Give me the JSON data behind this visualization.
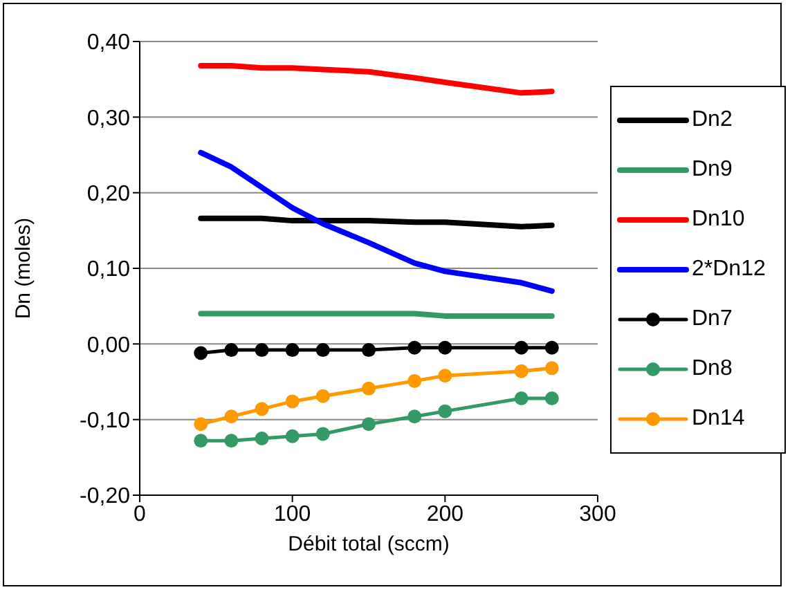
{
  "chart_data": {
    "type": "line",
    "xlabel": "Débit total (sccm)",
    "ylabel": "Dn (moles)",
    "x": [
      40,
      60,
      80,
      100,
      120,
      150,
      180,
      200,
      250,
      270
    ],
    "xlim": [
      0,
      300
    ],
    "xticks": [
      0,
      100,
      200,
      300
    ],
    "ylim": [
      -0.2,
      0.4
    ],
    "yticks": [
      {
        "value": -0.2,
        "label": "-0,20"
      },
      {
        "value": -0.1,
        "label": "-0,10"
      },
      {
        "value": 0,
        "label": "0,00"
      },
      {
        "value": 0.1,
        "label": "0,10"
      },
      {
        "value": 0.2,
        "label": "0,20"
      },
      {
        "value": 0.3,
        "label": "0,30"
      },
      {
        "value": 0.4,
        "label": "0,40"
      }
    ],
    "grid": "y",
    "legend": "right",
    "series": [
      {
        "name": "Dn2",
        "color": "#000000",
        "marker": "none",
        "values": [
          0.166,
          0.166,
          0.166,
          0.163,
          0.163,
          0.163,
          0.161,
          0.161,
          0.155,
          0.157
        ]
      },
      {
        "name": "Dn9",
        "color": "#339966",
        "marker": "none",
        "values": [
          0.04,
          0.04,
          0.04,
          0.04,
          0.04,
          0.04,
          0.04,
          0.037,
          0.037,
          0.037
        ]
      },
      {
        "name": "Dn10",
        "color": "#ff0000",
        "marker": "none",
        "values": [
          0.368,
          0.368,
          0.365,
          0.365,
          0.363,
          0.36,
          0.352,
          0.346,
          0.332,
          0.334
        ]
      },
      {
        "name": "2*Dn12",
        "color": "#0000ff",
        "marker": "none",
        "values": [
          0.253,
          0.234,
          0.207,
          0.18,
          0.159,
          0.134,
          0.107,
          0.096,
          0.081,
          0.07
        ]
      },
      {
        "name": "Dn7",
        "color": "#000000",
        "marker": "circle",
        "values": [
          -0.012,
          -0.008,
          -0.008,
          -0.008,
          -0.008,
          -0.008,
          -0.005,
          -0.005,
          -0.005,
          -0.005
        ]
      },
      {
        "name": "Dn8",
        "color": "#339966",
        "marker": "circle",
        "values": [
          -0.128,
          -0.128,
          -0.125,
          -0.122,
          -0.119,
          -0.106,
          -0.096,
          -0.089,
          -0.072,
          -0.072
        ]
      },
      {
        "name": "Dn14",
        "color": "#ff9900",
        "marker": "circle",
        "values": [
          -0.106,
          -0.096,
          -0.086,
          -0.076,
          -0.069,
          -0.059,
          -0.049,
          -0.042,
          -0.036,
          -0.032
        ]
      }
    ]
  }
}
